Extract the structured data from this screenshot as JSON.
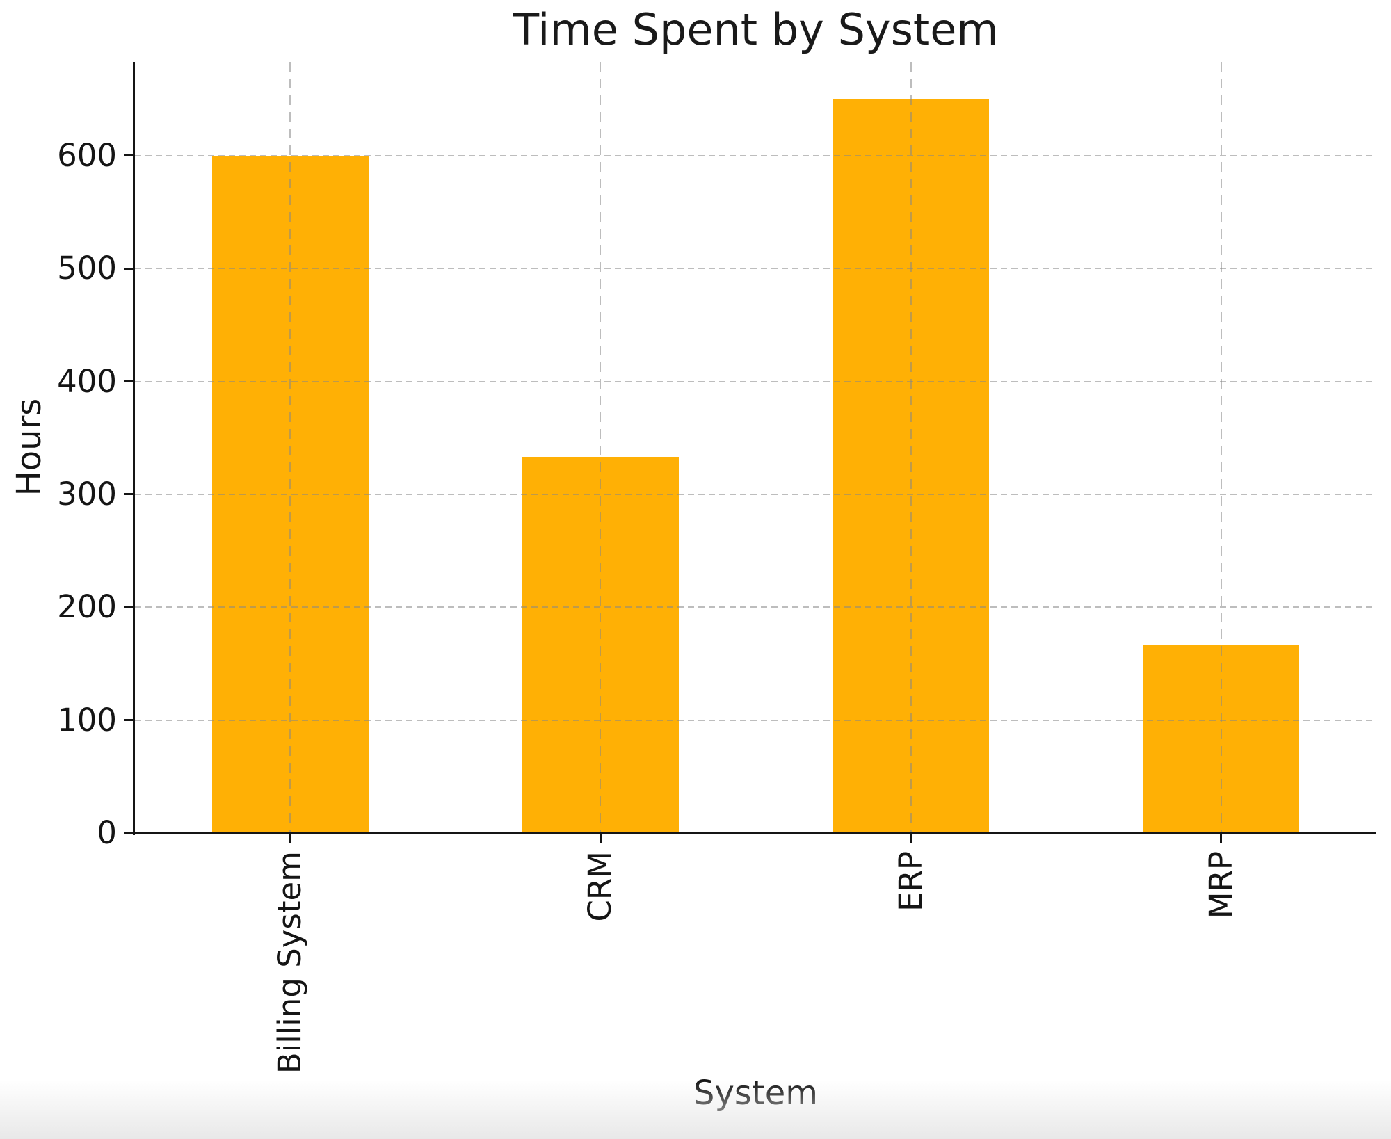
{
  "chart_data": {
    "type": "bar",
    "title": "Time Spent by System",
    "xlabel": "System",
    "ylabel": "Hours",
    "categories": [
      "Billing System",
      "CRM",
      "ERP",
      "MRP"
    ],
    "values": [
      600,
      333,
      650,
      167
    ],
    "yticks": [
      0,
      100,
      200,
      300,
      400,
      500,
      600
    ],
    "ylim": [
      0,
      683
    ],
    "bar_color": "#ffb005",
    "grid": true,
    "grid_style": "dashed",
    "grid_color": "#878787",
    "legend": false,
    "tick_label_rotation_deg": 90,
    "axis_color": "#151515",
    "background_color": "#ffffff"
  }
}
